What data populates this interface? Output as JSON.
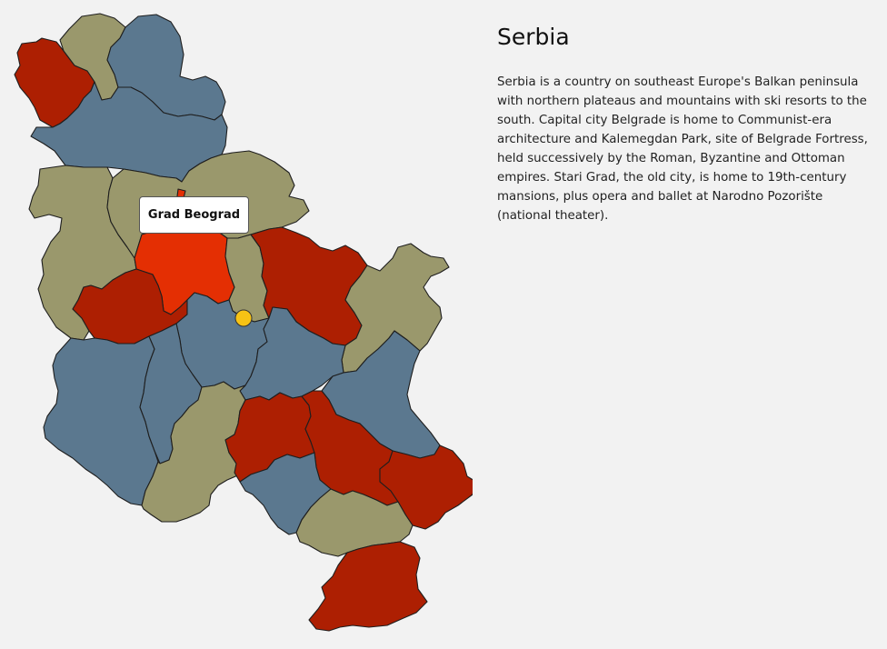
{
  "map": {
    "country": "Serbia",
    "colors": {
      "red": "#ad1f02",
      "blue": "#5b788f",
      "khaki": "#9a986c",
      "selected": "#e42f03",
      "marker": "#f7c315"
    },
    "regions": [
      {
        "id": "nw",
        "color": "red"
      },
      {
        "id": "n-khaki",
        "color": "khaki"
      },
      {
        "id": "n-blue-top",
        "color": "blue"
      },
      {
        "id": "n-blue-center",
        "color": "blue"
      },
      {
        "id": "w-khaki",
        "color": "khaki"
      },
      {
        "id": "c-khaki",
        "color": "khaki"
      },
      {
        "id": "belgrade",
        "color": "selected",
        "name": "Grad Beograd"
      },
      {
        "id": "c-khaki-strip",
        "color": "khaki"
      },
      {
        "id": "c-red-east",
        "color": "red"
      },
      {
        "id": "e-khaki",
        "color": "khaki"
      },
      {
        "id": "w-red",
        "color": "red"
      },
      {
        "id": "c-blue",
        "color": "blue"
      },
      {
        "id": "ce-blue",
        "color": "blue"
      },
      {
        "id": "e-blue",
        "color": "blue"
      },
      {
        "id": "sw-blue",
        "color": "blue"
      },
      {
        "id": "s-blue-center",
        "color": "blue"
      },
      {
        "id": "s-khaki",
        "color": "khaki"
      },
      {
        "id": "s-red-center",
        "color": "red"
      },
      {
        "id": "s-red-mid",
        "color": "red"
      },
      {
        "id": "se-red",
        "color": "red"
      },
      {
        "id": "s-blue-lower",
        "color": "blue"
      },
      {
        "id": "s-khaki-lower",
        "color": "khaki"
      },
      {
        "id": "s-red-bottom",
        "color": "red"
      }
    ],
    "tooltip": "Grad Beograd"
  },
  "info": {
    "title": "Serbia",
    "description": "Serbia is a country on southeast Europe's Balkan peninsula with northern plateaus and mountains with ski resorts to the south. Capital city Belgrade is home to Communist-era architecture and Kalemegdan Park, site of Belgrade Fortress, held successively by the Roman, Byzantine and Ottoman empires. Stari Grad, the old city, is home to 19th-century mansions, plus opera and ballet at Narodno Pozorište (national theater)."
  }
}
